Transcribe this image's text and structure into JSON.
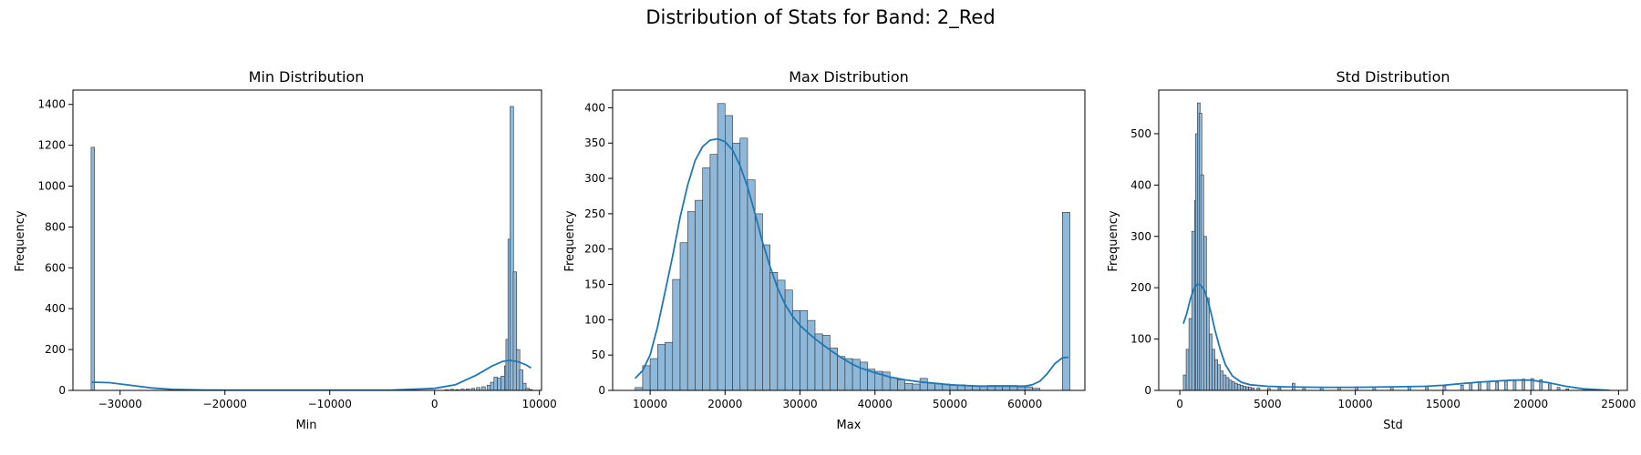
{
  "figure": {
    "title": "Distribution of Stats for Band: 2_Red",
    "bar_color": "#8fb8d8",
    "bar_edge": "#333333",
    "kde_color": "#1f77b4"
  },
  "chart_data": [
    {
      "type": "histogram",
      "title": "Min Distribution",
      "xlabel": "Min",
      "ylabel": "Frequency",
      "xlim": [
        -34500,
        10200
      ],
      "ylim": [
        0,
        1470
      ],
      "xticks": [
        -30000,
        -20000,
        -10000,
        0,
        10000
      ],
      "yticks": [
        0,
        200,
        400,
        600,
        800,
        1000,
        1200,
        1400
      ],
      "bin_width": 330,
      "bins": [
        [
          -32768,
          1190
        ],
        [
          1000,
          3
        ],
        [
          1500,
          5
        ],
        [
          2000,
          4
        ],
        [
          2500,
          6
        ],
        [
          3000,
          7
        ],
        [
          3500,
          10
        ],
        [
          4000,
          14
        ],
        [
          4500,
          18
        ],
        [
          5000,
          25
        ],
        [
          5330,
          40
        ],
        [
          5660,
          65
        ],
        [
          6000,
          60
        ],
        [
          6330,
          70
        ],
        [
          6660,
          120
        ],
        [
          6800,
          250
        ],
        [
          7000,
          740
        ],
        [
          7200,
          1390
        ],
        [
          7500,
          580
        ],
        [
          7800,
          200
        ],
        [
          8100,
          100
        ],
        [
          8400,
          35
        ],
        [
          8700,
          10
        ],
        [
          9000,
          4
        ]
      ],
      "kde": [
        [
          -32700,
          40
        ],
        [
          -31000,
          38
        ],
        [
          -29000,
          25
        ],
        [
          -27000,
          12
        ],
        [
          -25000,
          5
        ],
        [
          -22000,
          2
        ],
        [
          -18000,
          1
        ],
        [
          -10000,
          1
        ],
        [
          -4000,
          2
        ],
        [
          0,
          10
        ],
        [
          2000,
          28
        ],
        [
          4000,
          75
        ],
        [
          5500,
          120
        ],
        [
          6500,
          142
        ],
        [
          7200,
          147
        ],
        [
          8000,
          140
        ],
        [
          8700,
          125
        ],
        [
          9200,
          110
        ]
      ]
    },
    {
      "type": "histogram",
      "title": "Max Distribution",
      "xlabel": "Max",
      "ylabel": "Frequency",
      "xlim": [
        5000,
        68000
      ],
      "ylim": [
        0,
        425
      ],
      "xticks": [
        10000,
        20000,
        30000,
        40000,
        50000,
        60000
      ],
      "yticks": [
        0,
        50,
        100,
        150,
        200,
        250,
        300,
        350,
        400
      ],
      "bin_width": 1000,
      "bins": [
        [
          8000,
          4
        ],
        [
          9000,
          35
        ],
        [
          10000,
          45
        ],
        [
          11000,
          65
        ],
        [
          12000,
          68
        ],
        [
          13000,
          157
        ],
        [
          14000,
          209
        ],
        [
          15000,
          253
        ],
        [
          16000,
          269
        ],
        [
          17000,
          315
        ],
        [
          18000,
          334
        ],
        [
          19000,
          406
        ],
        [
          20000,
          389
        ],
        [
          21000,
          350
        ],
        [
          22000,
          357
        ],
        [
          23000,
          298
        ],
        [
          24000,
          250
        ],
        [
          25000,
          206
        ],
        [
          26000,
          167
        ],
        [
          27000,
          156
        ],
        [
          28000,
          142
        ],
        [
          29000,
          113
        ],
        [
          30000,
          113
        ],
        [
          31000,
          99
        ],
        [
          32000,
          80
        ],
        [
          33000,
          78
        ],
        [
          34000,
          60
        ],
        [
          35000,
          48
        ],
        [
          36000,
          45
        ],
        [
          37000,
          44
        ],
        [
          38000,
          40
        ],
        [
          39000,
          30
        ],
        [
          40000,
          27
        ],
        [
          41000,
          26
        ],
        [
          42000,
          18
        ],
        [
          43000,
          15
        ],
        [
          44000,
          10
        ],
        [
          45000,
          9
        ],
        [
          46000,
          17
        ],
        [
          47000,
          10
        ],
        [
          48000,
          10
        ],
        [
          49000,
          9
        ],
        [
          50000,
          8
        ],
        [
          51000,
          8
        ],
        [
          52000,
          7
        ],
        [
          53000,
          6
        ],
        [
          54000,
          6
        ],
        [
          55000,
          7
        ],
        [
          56000,
          7
        ],
        [
          57000,
          7
        ],
        [
          58000,
          7
        ],
        [
          59000,
          5
        ],
        [
          60000,
          5
        ],
        [
          61000,
          3
        ],
        [
          65000,
          252
        ]
      ],
      "kde": [
        [
          8000,
          17
        ],
        [
          9000,
          28
        ],
        [
          10000,
          50
        ],
        [
          11000,
          90
        ],
        [
          12000,
          140
        ],
        [
          13000,
          190
        ],
        [
          14000,
          245
        ],
        [
          15000,
          290
        ],
        [
          16000,
          325
        ],
        [
          17000,
          345
        ],
        [
          18000,
          354
        ],
        [
          19000,
          356
        ],
        [
          20000,
          352
        ],
        [
          21000,
          340
        ],
        [
          22000,
          318
        ],
        [
          23000,
          288
        ],
        [
          24000,
          250
        ],
        [
          25000,
          210
        ],
        [
          26000,
          175
        ],
        [
          27000,
          145
        ],
        [
          28000,
          122
        ],
        [
          29000,
          105
        ],
        [
          30000,
          92
        ],
        [
          31000,
          82
        ],
        [
          32000,
          73
        ],
        [
          33000,
          65
        ],
        [
          34000,
          57
        ],
        [
          35000,
          50
        ],
        [
          36000,
          43
        ],
        [
          37000,
          37
        ],
        [
          38000,
          32
        ],
        [
          40000,
          25
        ],
        [
          42000,
          19
        ],
        [
          44000,
          15
        ],
        [
          46000,
          12
        ],
        [
          48000,
          10
        ],
        [
          50000,
          8
        ],
        [
          52000,
          7
        ],
        [
          54000,
          6
        ],
        [
          56000,
          6
        ],
        [
          58000,
          6
        ],
        [
          60000,
          6
        ],
        [
          61000,
          8
        ],
        [
          62000,
          13
        ],
        [
          63000,
          24
        ],
        [
          64000,
          38
        ],
        [
          65000,
          46
        ],
        [
          65800,
          47
        ]
      ]
    },
    {
      "type": "histogram",
      "title": "Std Distribution",
      "xlabel": "Std",
      "ylabel": "Frequency",
      "xlim": [
        -1200,
        25500
      ],
      "ylim": [
        0,
        585
      ],
      "xticks": [
        0,
        5000,
        10000,
        15000,
        20000,
        25000
      ],
      "yticks": [
        0,
        100,
        200,
        300,
        400,
        500
      ],
      "bin_width": 160,
      "bins": [
        [
          200,
          30
        ],
        [
          360,
          80
        ],
        [
          520,
          140
        ],
        [
          680,
          310
        ],
        [
          840,
          370
        ],
        [
          900,
          500
        ],
        [
          1000,
          560
        ],
        [
          1100,
          540
        ],
        [
          1200,
          420
        ],
        [
          1360,
          300
        ],
        [
          1520,
          180
        ],
        [
          1680,
          110
        ],
        [
          1840,
          80
        ],
        [
          2000,
          60
        ],
        [
          2160,
          50
        ],
        [
          2320,
          38
        ],
        [
          2480,
          30
        ],
        [
          2640,
          25
        ],
        [
          2800,
          20
        ],
        [
          2960,
          17
        ],
        [
          3120,
          14
        ],
        [
          3280,
          12
        ],
        [
          3440,
          10
        ],
        [
          3600,
          8
        ],
        [
          3760,
          7
        ],
        [
          3920,
          6
        ],
        [
          4080,
          5
        ],
        [
          4400,
          5
        ],
        [
          5000,
          4
        ],
        [
          5600,
          5
        ],
        [
          6400,
          14
        ],
        [
          7000,
          6
        ],
        [
          8000,
          6
        ],
        [
          9000,
          6
        ],
        [
          10000,
          7
        ],
        [
          11000,
          6
        ],
        [
          12000,
          7
        ],
        [
          13000,
          7
        ],
        [
          14000,
          7
        ],
        [
          15000,
          8
        ],
        [
          16000,
          10
        ],
        [
          16500,
          15
        ],
        [
          17000,
          17
        ],
        [
          17500,
          18
        ],
        [
          18000,
          16
        ],
        [
          18500,
          18
        ],
        [
          19000,
          19
        ],
        [
          19500,
          22
        ],
        [
          20000,
          23
        ],
        [
          20500,
          21
        ],
        [
          21000,
          14
        ],
        [
          21500,
          6
        ],
        [
          22000,
          3
        ],
        [
          23000,
          2
        ],
        [
          24000,
          1
        ]
      ],
      "kde": [
        [
          200,
          130
        ],
        [
          400,
          150
        ],
        [
          600,
          178
        ],
        [
          800,
          198
        ],
        [
          1000,
          207
        ],
        [
          1200,
          205
        ],
        [
          1400,
          195
        ],
        [
          1600,
          175
        ],
        [
          1800,
          148
        ],
        [
          2000,
          118
        ],
        [
          2300,
          80
        ],
        [
          2600,
          50
        ],
        [
          3000,
          28
        ],
        [
          3500,
          16
        ],
        [
          4000,
          11
        ],
        [
          5000,
          8
        ],
        [
          6000,
          7
        ],
        [
          8000,
          6
        ],
        [
          10000,
          6
        ],
        [
          12000,
          7
        ],
        [
          14000,
          8
        ],
        [
          15000,
          10
        ],
        [
          16000,
          13
        ],
        [
          17000,
          16
        ],
        [
          18000,
          18
        ],
        [
          19000,
          20
        ],
        [
          20000,
          20
        ],
        [
          21000,
          15
        ],
        [
          22000,
          8
        ],
        [
          23000,
          3
        ],
        [
          24500,
          0
        ]
      ]
    }
  ]
}
